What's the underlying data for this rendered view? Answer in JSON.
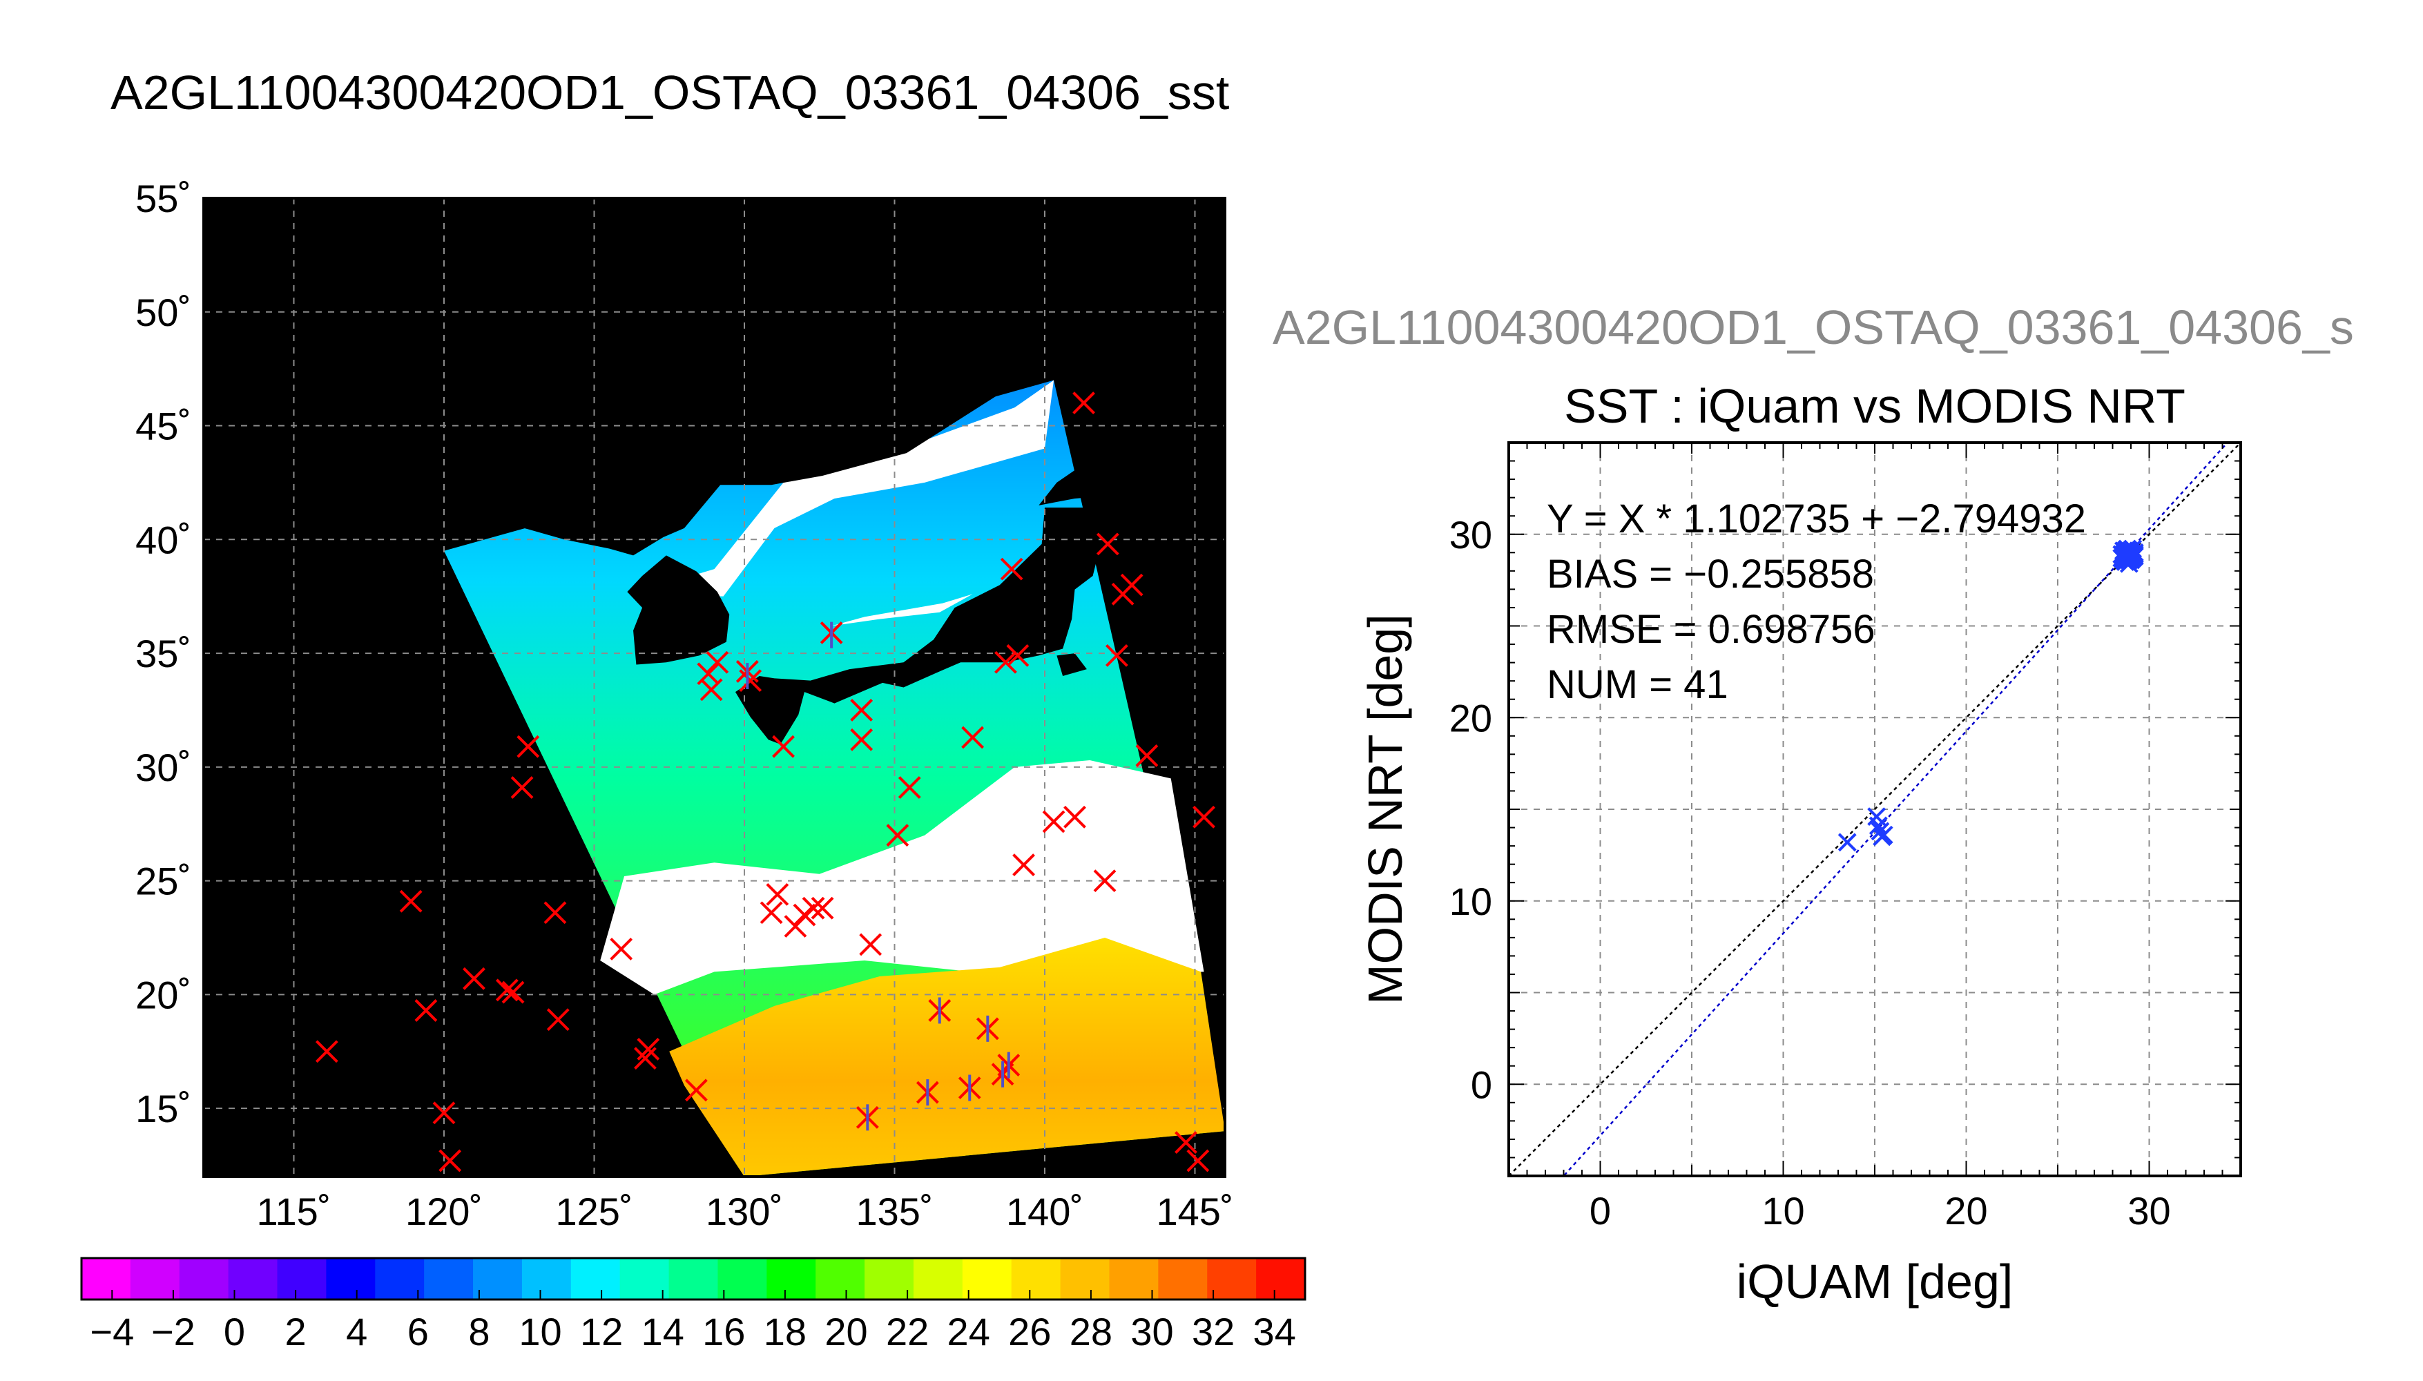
{
  "figure": {
    "title": "A2GL11004300420OD1_OSTAQ_03361_04306_sst",
    "scatter_header": "A2GL11004300420OD1_OSTAQ_03361_04306_s"
  },
  "colors": {
    "background": "#ffffff",
    "land": "#000000",
    "cloud": "#ffffff",
    "grid": "#8c8c8c",
    "insitu_marker": "#ff0000",
    "match_marker": "#5050c8",
    "fit_line": "#0000cc",
    "scatter_marker": "#1e3cff",
    "identity_line": "#000000"
  },
  "chart_data": [
    {
      "type": "map",
      "title": "A2GL11004300420OD1_OSTAQ_03361_04306_sst",
      "lon_range": [
        112,
        146
      ],
      "lat_range": [
        12,
        55
      ],
      "lon_ticks": [
        115,
        120,
        125,
        130,
        135,
        140,
        145
      ],
      "lat_ticks": [
        15,
        20,
        25,
        30,
        35,
        40,
        45,
        50,
        55
      ],
      "lon_tick_labels": [
        "115˚",
        "120˚",
        "125˚",
        "130˚",
        "135˚",
        "140˚",
        "145˚"
      ],
      "lat_tick_labels": [
        "15˚",
        "20˚",
        "25˚",
        "30˚",
        "35˚",
        "40˚",
        "45˚",
        "50˚",
        "55˚"
      ],
      "grid": true,
      "swath_corners": [
        [
          120.0,
          39.5
        ],
        [
          140.3,
          47.0
        ],
        [
          146.0,
          14.0
        ],
        [
          130.0,
          12.0
        ]
      ],
      "colorbar": {
        "min": -5,
        "max": 35,
        "ticks": [
          -4,
          -2,
          0,
          2,
          4,
          6,
          8,
          10,
          12,
          14,
          16,
          18,
          20,
          22,
          24,
          26,
          28,
          30,
          32,
          34
        ],
        "tick_labels": [
          "−4",
          "−2",
          "0",
          "2",
          "4",
          "6",
          "8",
          "10",
          "12",
          "14",
          "16",
          "18",
          "20",
          "22",
          "24",
          "26",
          "28",
          "30",
          "32",
          "34"
        ],
        "colors": [
          "#ff00ff",
          "#d000ff",
          "#a000ff",
          "#7000ff",
          "#4000ff",
          "#0000ff",
          "#0030ff",
          "#0060ff",
          "#0090ff",
          "#00c0ff",
          "#00f0ff",
          "#00ffc8",
          "#00ff90",
          "#00ff50",
          "#00ff00",
          "#50ff00",
          "#a0ff00",
          "#d8ff00",
          "#ffff00",
          "#ffe000",
          "#ffc000",
          "#ffa000",
          "#ff7000",
          "#ff4000",
          "#ff1000"
        ]
      },
      "insitu_points": [
        [
          116.1,
          17.5
        ],
        [
          118.9,
          24.1
        ],
        [
          119.4,
          19.3
        ],
        [
          120.0,
          14.8
        ],
        [
          120.2,
          12.7
        ],
        [
          121.0,
          20.7
        ],
        [
          122.1,
          20.2
        ],
        [
          122.3,
          20.1
        ],
        [
          122.6,
          29.1
        ],
        [
          122.8,
          30.9
        ],
        [
          123.7,
          23.6
        ],
        [
          123.8,
          18.9
        ],
        [
          125.9,
          22.0
        ],
        [
          126.7,
          17.2
        ],
        [
          126.8,
          17.6
        ],
        [
          128.4,
          15.8
        ],
        [
          128.9,
          33.4
        ],
        [
          128.8,
          34.1
        ],
        [
          129.1,
          34.6
        ],
        [
          130.1,
          34.2
        ],
        [
          130.2,
          33.8
        ],
        [
          130.9,
          23.6
        ],
        [
          131.1,
          24.4
        ],
        [
          131.7,
          23.0
        ],
        [
          132.0,
          23.5
        ],
        [
          132.3,
          23.8
        ],
        [
          132.6,
          23.8
        ],
        [
          131.3,
          30.9
        ],
        [
          132.9,
          35.9
        ],
        [
          133.9,
          32.5
        ],
        [
          133.9,
          31.2
        ],
        [
          134.2,
          22.2
        ],
        [
          134.1,
          14.6
        ],
        [
          135.1,
          27.0
        ],
        [
          135.5,
          29.1
        ],
        [
          136.1,
          15.7
        ],
        [
          136.5,
          19.3
        ],
        [
          137.5,
          15.9
        ],
        [
          137.6,
          31.3
        ],
        [
          138.1,
          18.5
        ],
        [
          138.6,
          16.5
        ],
        [
          138.8,
          16.9
        ],
        [
          138.9,
          38.7
        ],
        [
          138.7,
          34.6
        ],
        [
          139.1,
          34.9
        ],
        [
          139.3,
          25.7
        ],
        [
          140.3,
          27.6
        ],
        [
          141.0,
          27.8
        ],
        [
          141.3,
          46.0
        ],
        [
          142.0,
          25.0
        ],
        [
          142.1,
          39.8
        ],
        [
          142.4,
          34.9
        ],
        [
          142.6,
          37.6
        ],
        [
          142.9,
          38.0
        ],
        [
          143.4,
          30.5
        ],
        [
          144.7,
          13.5
        ],
        [
          145.1,
          12.7
        ],
        [
          145.3,
          27.8
        ]
      ],
      "matchup_points": [
        [
          130.1,
          34.0
        ],
        [
          132.9,
          35.8
        ],
        [
          134.1,
          14.6
        ],
        [
          136.1,
          15.7
        ],
        [
          136.5,
          19.3
        ],
        [
          137.5,
          15.9
        ],
        [
          138.1,
          18.5
        ],
        [
          138.6,
          16.5
        ],
        [
          138.8,
          16.9
        ]
      ]
    },
    {
      "type": "scatter",
      "title": "SST : iQuam vs MODIS NRT",
      "xlabel": "iQUAM [deg]",
      "ylabel": "MODIS NRT [deg]",
      "xlim": [
        -5,
        35
      ],
      "ylim": [
        -5,
        35
      ],
      "xticks": [
        0,
        10,
        20,
        30
      ],
      "yticks": [
        0,
        10,
        20,
        30
      ],
      "grid": true,
      "annotations": [
        "Y = X * 1.102735 + −2.794932",
        "BIAS = −0.255858",
        "RMSE = 0.698756",
        "NUM = 41"
      ],
      "fit": {
        "slope": 1.102735,
        "intercept": -2.794932
      },
      "points": [
        [
          13.5,
          13.2
        ],
        [
          15.1,
          14.6
        ],
        [
          15.3,
          13.8
        ],
        [
          15.4,
          13.5
        ],
        [
          15.2,
          14.1
        ],
        [
          15.5,
          13.6
        ],
        [
          28.6,
          28.8
        ],
        [
          28.7,
          29.0
        ],
        [
          28.8,
          28.6
        ],
        [
          28.9,
          29.1
        ],
        [
          29.0,
          28.7
        ],
        [
          29.1,
          28.9
        ],
        [
          28.5,
          28.7
        ],
        [
          28.8,
          29.2
        ],
        [
          29.2,
          28.8
        ],
        [
          28.7,
          28.5
        ],
        [
          29.0,
          29.0
        ],
        [
          28.6,
          29.1
        ],
        [
          28.9,
          28.4
        ],
        [
          29.1,
          29.2
        ],
        [
          28.8,
          28.9
        ],
        [
          28.7,
          28.8
        ],
        [
          29.0,
          28.6
        ],
        [
          28.9,
          28.8
        ],
        [
          28.6,
          28.6
        ],
        [
          29.2,
          29.0
        ],
        [
          28.8,
          29.0
        ],
        [
          29.0,
          28.9
        ],
        [
          28.7,
          29.1
        ],
        [
          28.9,
          29.0
        ],
        [
          28.5,
          28.9
        ],
        [
          29.1,
          28.7
        ],
        [
          28.8,
          28.7
        ],
        [
          29.0,
          29.1
        ],
        [
          28.6,
          28.9
        ],
        [
          28.9,
          28.6
        ],
        [
          29.2,
          28.9
        ],
        [
          28.7,
          28.9
        ],
        [
          28.8,
          28.8
        ],
        [
          29.0,
          28.8
        ],
        [
          28.9,
          28.9
        ]
      ]
    }
  ]
}
